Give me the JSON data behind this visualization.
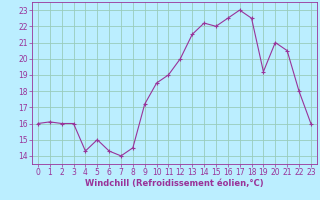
{
  "x": [
    0,
    1,
    2,
    3,
    4,
    5,
    6,
    7,
    8,
    9,
    10,
    11,
    12,
    13,
    14,
    15,
    16,
    17,
    18,
    19,
    20,
    21,
    22,
    23
  ],
  "y": [
    16.0,
    16.1,
    16.0,
    16.0,
    14.3,
    15.0,
    14.3,
    14.0,
    14.5,
    17.2,
    18.5,
    19.0,
    20.0,
    21.5,
    22.2,
    22.0,
    22.5,
    23.0,
    22.5,
    19.2,
    21.0,
    20.5,
    18.0,
    16.0
  ],
  "line_color": "#993399",
  "marker": "+",
  "bg_color": "#bbeeff",
  "grid_color": "#99ccbb",
  "xlabel": "Windchill (Refroidissement éolien,°C)",
  "xlabel_color": "#993399",
  "tick_color": "#993399",
  "label_color": "#993399",
  "ylim": [
    13.5,
    23.5
  ],
  "xlim": [
    -0.5,
    23.5
  ],
  "yticks": [
    14,
    15,
    16,
    17,
    18,
    19,
    20,
    21,
    22,
    23
  ],
  "xticks": [
    0,
    1,
    2,
    3,
    4,
    5,
    6,
    7,
    8,
    9,
    10,
    11,
    12,
    13,
    14,
    15,
    16,
    17,
    18,
    19,
    20,
    21,
    22,
    23
  ],
  "tick_fontsize": 5.5,
  "xlabel_fontsize": 6.0,
  "markersize": 3,
  "linewidth": 0.8
}
